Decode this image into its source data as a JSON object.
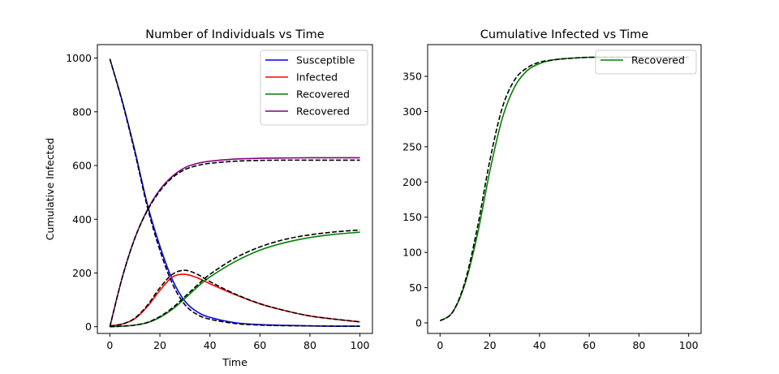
{
  "colors": {
    "susceptible": "#0000ff",
    "infected": "#ff0000",
    "recovered_green": "#008000",
    "recovered_purple": "#800080",
    "dashed": "#000000"
  },
  "chart_data": [
    {
      "type": "line",
      "title": "Number of Individuals vs Time",
      "xlabel": "Time",
      "ylabel": "Cumulative Infected",
      "xlim": [
        -5,
        105
      ],
      "ylim": [
        -25,
        1050
      ],
      "xticks": [
        0,
        20,
        40,
        60,
        80,
        100
      ],
      "yticks": [
        0,
        200,
        400,
        600,
        800,
        1000
      ],
      "grid": false,
      "legend_position": "top-right",
      "series": [
        {
          "name": "Susceptible",
          "color_key": "susceptible",
          "style": "solid",
          "x": [
            0,
            5,
            10,
            15,
            20,
            25,
            30,
            35,
            40,
            50,
            60,
            70,
            80,
            90,
            100
          ],
          "y": [
            997,
            838,
            655,
            455,
            300,
            175,
            95,
            55,
            35,
            15,
            8,
            5,
            3,
            2,
            2
          ]
        },
        {
          "name": "Infected",
          "color_key": "infected",
          "style": "solid",
          "x": [
            0,
            5,
            10,
            15,
            20,
            25,
            30,
            35,
            40,
            50,
            60,
            70,
            80,
            90,
            100
          ],
          "y": [
            3,
            10,
            30,
            75,
            135,
            185,
            195,
            182,
            160,
            120,
            85,
            60,
            40,
            28,
            18
          ]
        },
        {
          "name": "Recovered",
          "color_key": "recovered_green",
          "style": "solid",
          "x": [
            0,
            5,
            10,
            15,
            20,
            25,
            30,
            35,
            40,
            50,
            60,
            70,
            80,
            90,
            100
          ],
          "y": [
            0,
            2,
            6,
            15,
            35,
            65,
            105,
            148,
            185,
            242,
            285,
            313,
            332,
            344,
            352
          ]
        },
        {
          "name": "Recovered",
          "color_key": "recovered_purple",
          "style": "solid",
          "x": [
            0,
            5,
            10,
            15,
            20,
            25,
            30,
            35,
            40,
            50,
            60,
            70,
            80,
            90,
            100
          ],
          "y": [
            0,
            185,
            330,
            435,
            510,
            560,
            592,
            608,
            616,
            624,
            627,
            628,
            629,
            629,
            629
          ]
        },
        {
          "color_key": "dashed",
          "style": "dashed",
          "x": [
            0,
            5,
            10,
            15,
            20,
            25,
            30,
            35,
            40,
            50,
            60,
            70,
            80,
            90,
            100
          ],
          "y": [
            997,
            835,
            648,
            445,
            285,
            160,
            82,
            45,
            28,
            12,
            6,
            4,
            3,
            2,
            2
          ]
        },
        {
          "color_key": "dashed",
          "style": "dashed",
          "x": [
            0,
            5,
            10,
            15,
            20,
            25,
            30,
            35,
            40,
            50,
            60,
            70,
            80,
            90,
            100
          ],
          "y": [
            3,
            10,
            32,
            80,
            145,
            195,
            210,
            195,
            168,
            122,
            86,
            60,
            40,
            28,
            18
          ]
        },
        {
          "color_key": "dashed",
          "style": "dashed",
          "x": [
            0,
            5,
            10,
            15,
            20,
            25,
            30,
            35,
            40,
            50,
            60,
            70,
            80,
            90,
            100
          ],
          "y": [
            0,
            2,
            6,
            16,
            38,
            70,
            112,
            155,
            195,
            255,
            297,
            325,
            342,
            353,
            360
          ]
        },
        {
          "color_key": "dashed",
          "style": "dashed",
          "x": [
            0,
            5,
            10,
            15,
            20,
            25,
            30,
            35,
            40,
            50,
            60,
            70,
            80,
            90,
            100
          ],
          "y": [
            0,
            185,
            330,
            432,
            505,
            555,
            585,
            600,
            608,
            616,
            619,
            620,
            620,
            620,
            620
          ]
        }
      ]
    },
    {
      "type": "line",
      "title": "Cumulative Infected vs Time",
      "xlabel": "",
      "ylabel": "",
      "xlim": [
        -5,
        105
      ],
      "ylim": [
        -15,
        395
      ],
      "xticks": [
        0,
        20,
        40,
        60,
        80,
        100
      ],
      "yticks": [
        0,
        50,
        100,
        150,
        200,
        250,
        300,
        350
      ],
      "grid": false,
      "legend_position": "top-right",
      "series": [
        {
          "name": "Recovered",
          "color_key": "recovered_green",
          "style": "solid",
          "x": [
            0,
            5,
            10,
            15,
            20,
            25,
            30,
            35,
            40,
            45,
            50,
            60,
            70,
            80,
            90,
            100
          ],
          "y": [
            3,
            15,
            55,
            125,
            215,
            290,
            335,
            358,
            368,
            373,
            375,
            377,
            377,
            377,
            377,
            377
          ]
        },
        {
          "color_key": "dashed",
          "style": "dashed",
          "x": [
            0,
            5,
            10,
            15,
            20,
            25,
            30,
            35,
            40,
            45,
            50,
            60,
            70,
            80,
            90,
            100
          ],
          "y": [
            3,
            15,
            58,
            135,
            230,
            305,
            345,
            362,
            370,
            373,
            375,
            377,
            377,
            377,
            377,
            377
          ]
        }
      ]
    }
  ]
}
